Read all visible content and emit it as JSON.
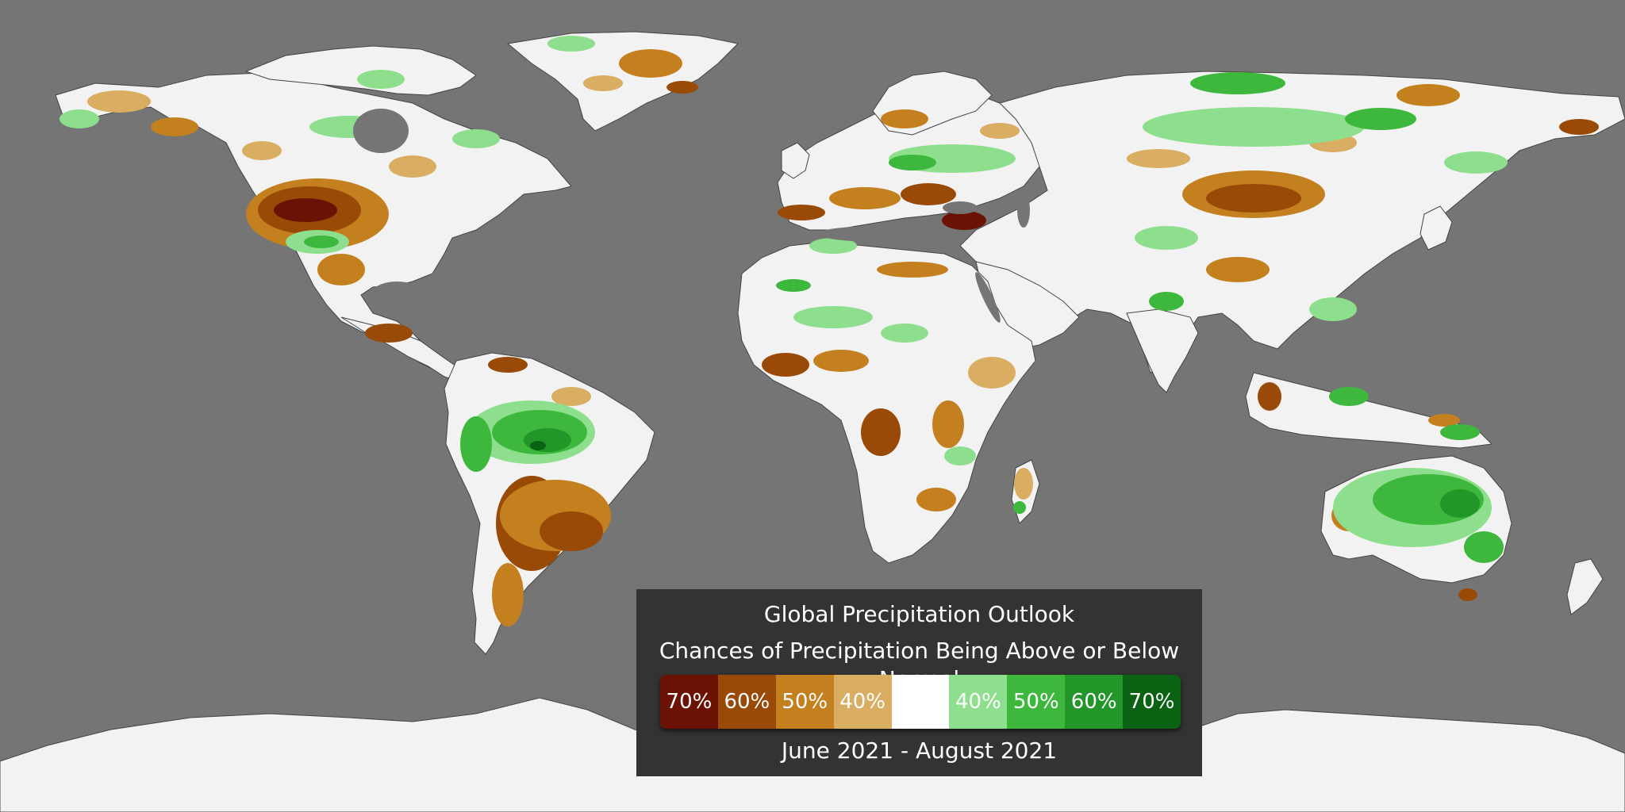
{
  "map": {
    "ocean_color": "#757575",
    "neutral_color": "#f2f2f2",
    "border_color": "#333333",
    "categories": {
      "below_70": "#6b1205",
      "below_60": "#9a4a07",
      "below_50": "#c47f1f",
      "below_40": "#d9ad62",
      "above_40": "#8ddf8d",
      "above_50": "#3db83d",
      "above_60": "#23962a",
      "above_70": "#0a6312"
    }
  },
  "legend": {
    "title": "Global Precipitation Outlook",
    "subtitle": "Chances of Precipitation Being Above or Below Normal",
    "period": "June 2021 - August 2021",
    "scale": [
      {
        "label": "70%",
        "color": "#6b1205"
      },
      {
        "label": "60%",
        "color": "#9a4a07"
      },
      {
        "label": "50%",
        "color": "#c47f1f"
      },
      {
        "label": "40%",
        "color": "#d9ad62"
      },
      {
        "label": "",
        "color": "#ffffff"
      },
      {
        "label": "40%",
        "color": "#8ddf8d"
      },
      {
        "label": "50%",
        "color": "#3db83d"
      },
      {
        "label": "60%",
        "color": "#23962a"
      },
      {
        "label": "70%",
        "color": "#0a6312"
      }
    ]
  }
}
